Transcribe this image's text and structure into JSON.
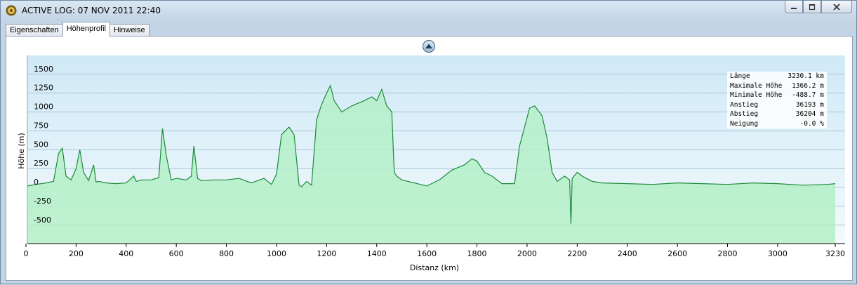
{
  "window": {
    "title": "ACTIVE LOG: 07 NOV 2011 22:40",
    "app_icon": "garmin-app-icon",
    "controls": [
      "minimize-icon",
      "maximize-icon",
      "close-icon"
    ]
  },
  "tabs": [
    {
      "label": "Eigenschaften",
      "active": false
    },
    {
      "label": "Höhenprofil",
      "active": true
    },
    {
      "label": "Hinweise",
      "active": false
    }
  ],
  "collapse_button": {
    "icon": "collapse-up-icon"
  },
  "stats": [
    {
      "label": "Länge",
      "value": "3230.1 km"
    },
    {
      "label": "Maximale Höhe",
      "value": "1366.2 m"
    },
    {
      "label": "Minimale Höhe",
      "value": "-488.7 m"
    },
    {
      "label": "Anstieg",
      "value": "36193 m"
    },
    {
      "label": "Abstieg",
      "value": "36204 m"
    },
    {
      "label": "Neigung",
      "value": "-0.0 %"
    }
  ],
  "chart_data": {
    "type": "area",
    "xlabel": "Distanz  (km)",
    "ylabel": "Höhe (m)",
    "xlim": [
      0,
      3230
    ],
    "ylim": [
      -800,
      1750
    ],
    "x_ticks": [
      "0",
      "200",
      "400",
      "600",
      "800",
      "1000",
      "1200",
      "1400",
      "1600",
      "1800",
      "2000",
      "2200",
      "2400",
      "2600",
      "2800",
      "3000",
      "3230"
    ],
    "x_tick_values": [
      0,
      200,
      400,
      600,
      800,
      1000,
      1200,
      1400,
      1600,
      1800,
      2000,
      2200,
      2400,
      2600,
      2800,
      3000,
      3230
    ],
    "y_ticks": [
      "1500",
      "1250",
      "1000",
      "750",
      "500",
      "250",
      "0",
      "-250",
      "-500"
    ],
    "y_tick_values": [
      1500,
      1250,
      1000,
      750,
      500,
      250,
      0,
      -250,
      -500
    ],
    "grid": true,
    "colors": {
      "line": "#1e8a3a",
      "fill": "#b4f0c8",
      "bg_top": "#cfe9f6",
      "bg_bottom": "#f3fafd"
    },
    "series": [
      {
        "x": [
          0,
          40,
          80,
          110,
          130,
          145,
          160,
          180,
          200,
          215,
          230,
          250,
          270,
          280,
          290,
          320,
          360,
          400,
          430,
          440,
          460,
          500,
          530,
          545,
          560,
          580,
          600,
          640,
          660,
          670,
          685,
          700,
          750,
          800,
          850,
          900,
          950,
          980,
          1000,
          1020,
          1050,
          1070,
          1090,
          1100,
          1120,
          1140,
          1160,
          1180,
          1200,
          1215,
          1230,
          1260,
          1300,
          1350,
          1380,
          1400,
          1420,
          1440,
          1460,
          1470,
          1480,
          1500,
          1550,
          1600,
          1650,
          1700,
          1750,
          1780,
          1800,
          1830,
          1860,
          1880,
          1900,
          1950,
          1970,
          1990,
          2010,
          2030,
          2060,
          2080,
          2100,
          2120,
          2150,
          2170,
          2175,
          2180,
          2200,
          2220,
          2260,
          2300,
          2400,
          2500,
          2600,
          2700,
          2800,
          2900,
          3000,
          3100,
          3200,
          3230
        ],
        "y": [
          20,
          40,
          60,
          80,
          450,
          520,
          150,
          100,
          250,
          500,
          200,
          90,
          300,
          70,
          80,
          60,
          50,
          60,
          150,
          80,
          100,
          100,
          130,
          780,
          420,
          100,
          120,
          100,
          150,
          550,
          120,
          90,
          100,
          100,
          120,
          60,
          120,
          40,
          180,
          700,
          800,
          700,
          30,
          10,
          80,
          30,
          900,
          1100,
          1250,
          1350,
          1150,
          1000,
          1080,
          1150,
          1200,
          1150,
          1300,
          1080,
          1000,
          200,
          150,
          100,
          60,
          20,
          100,
          230,
          300,
          380,
          350,
          200,
          150,
          100,
          50,
          50,
          550,
          800,
          1050,
          1080,
          950,
          650,
          200,
          80,
          150,
          100,
          -480,
          120,
          200,
          150,
          80,
          60,
          50,
          40,
          60,
          50,
          40,
          60,
          50,
          30,
          40,
          50
        ]
      }
    ]
  }
}
